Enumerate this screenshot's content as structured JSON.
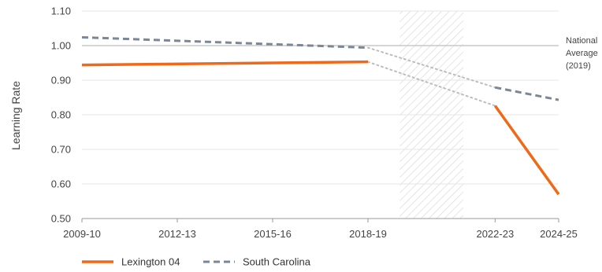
{
  "chart_data": {
    "type": "line",
    "ylabel": "Learning Rate",
    "ylim": [
      0.5,
      1.1
    ],
    "yticks": [
      0.5,
      0.6,
      0.7,
      0.8,
      0.9,
      1.0,
      1.1
    ],
    "ytick_labels": [
      "0.50",
      "0.60",
      "0.70",
      "0.80",
      "0.90",
      "1.00",
      "1.10"
    ],
    "xticks": [
      "2009-10",
      "2012-13",
      "2015-16",
      "2018-19",
      "2022-23",
      "2024-25"
    ],
    "grid": "horizontal",
    "shaded_region": {
      "from": "2019-20",
      "to": "2021-22",
      "pattern": "diagonal-hatch"
    },
    "reference_line": {
      "value": 1.0,
      "label_lines": [
        "National",
        "Average",
        "(2019)"
      ],
      "color": "#c8c8c8"
    },
    "series": [
      {
        "name": "Lexington 04",
        "color": "#ee6a1a",
        "style": "solid",
        "segments": [
          [
            [
              "2009-10",
              0.944
            ],
            [
              "2018-19",
              0.953
            ]
          ],
          [
            [
              "2022-23",
              0.826
            ],
            [
              "2024-25",
              0.57
            ]
          ]
        ],
        "gap_bridge": [
          [
            "2018-19",
            0.953
          ],
          [
            "2022-23",
            0.826
          ]
        ]
      },
      {
        "name": "South Carolina",
        "color": "#7b8796",
        "style": "dashed",
        "segments": [
          [
            [
              "2009-10",
              1.024
            ],
            [
              "2018-19",
              0.994
            ]
          ],
          [
            [
              "2022-23",
              0.879
            ],
            [
              "2024-25",
              0.843
            ]
          ]
        ],
        "gap_bridge": [
          [
            "2018-19",
            0.994
          ],
          [
            "2022-23",
            0.879
          ]
        ]
      }
    ],
    "legend": {
      "position": "bottom-left",
      "entries": [
        "Lexington 04",
        "South Carolina"
      ]
    }
  }
}
